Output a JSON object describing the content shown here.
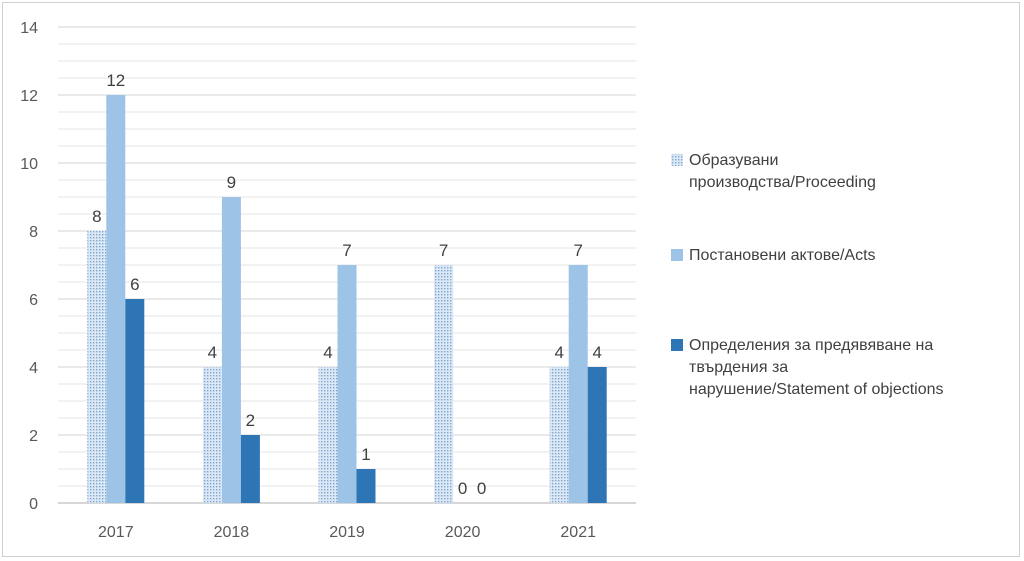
{
  "chart_data": {
    "type": "bar",
    "categories": [
      "2017",
      "2018",
      "2019",
      "2020",
      "2021"
    ],
    "series": [
      {
        "name": "Образувани производства/Proceeding",
        "legend_lines": [
          "Образувани",
          "производства/Proceeding"
        ],
        "values": [
          8,
          4,
          4,
          7,
          4
        ],
        "color": "#c5d9f0",
        "pattern": "dotted"
      },
      {
        "name": "Постановени актове/Acts",
        "legend_lines": [
          "Постановени актове/Acts"
        ],
        "values": [
          12,
          9,
          7,
          0,
          7
        ],
        "color": "#9dc3e6",
        "pattern": "solid"
      },
      {
        "name": "Определения за предявяване на твърдения за нарушение/Statement of objections",
        "legend_lines": [
          "Определения за предявяване на",
          "твърдения за",
          "нарушение/Statement of objections"
        ],
        "values": [
          6,
          2,
          1,
          0,
          4
        ],
        "color": "#2e75b6",
        "pattern": "solid"
      }
    ],
    "data_labels": [
      [
        "8",
        "4",
        "4",
        "7",
        "4"
      ],
      [
        "12",
        "9",
        "7",
        "0",
        "7"
      ],
      [
        "6",
        "2",
        "1",
        "0",
        "4"
      ]
    ],
    "y_ticks": [
      "0",
      "2",
      "4",
      "6",
      "8",
      "10",
      "12",
      "14"
    ],
    "ylim": [
      0,
      14
    ],
    "y_tick_step": 2,
    "y_minor_step": 0.5,
    "grid": true,
    "legend_position": "right",
    "title": "",
    "xlabel": "",
    "ylabel": ""
  }
}
